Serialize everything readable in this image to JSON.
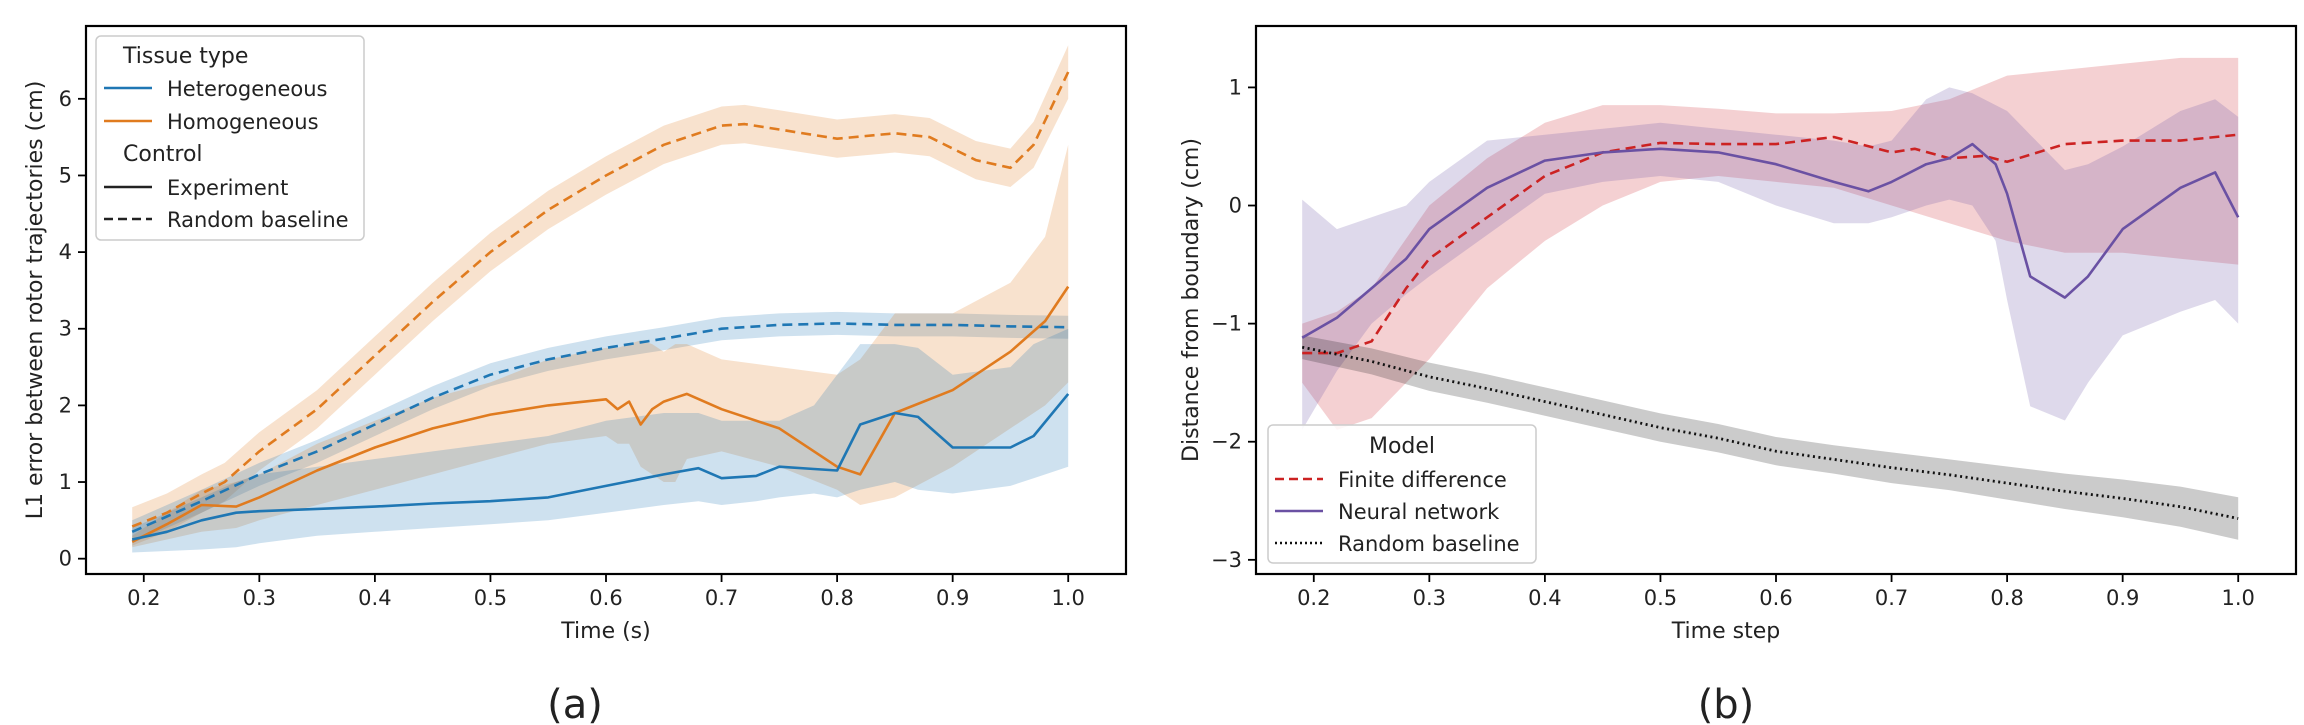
{
  "chart_data": [
    {
      "type": "line",
      "caption": "(a)",
      "xlabel": "Time (s)",
      "ylabel": "L1 error between rotor trajectories (cm)",
      "xlim": [
        0.15,
        1.05
      ],
      "ylim": [
        -0.2,
        6.95
      ],
      "xticks": [
        "0.2",
        "0.3",
        "0.4",
        "0.5",
        "0.6",
        "0.7",
        "0.8",
        "0.9",
        "1.0"
      ],
      "yticks": [
        "0",
        "1",
        "2",
        "3",
        "4",
        "5",
        "6"
      ],
      "grid": false,
      "legend": {
        "placement": "top-left",
        "group1_title": "Tissue type",
        "group1_items": [
          "Heterogeneous",
          "Homogeneous"
        ],
        "group2_title": "Control",
        "group2_items": [
          "Experiment",
          "Random baseline"
        ]
      },
      "series": [
        {
          "color": "#e07b1f",
          "style": "dashed",
          "x": [
            0.19,
            0.22,
            0.25,
            0.27,
            0.3,
            0.35,
            0.4,
            0.45,
            0.5,
            0.55,
            0.6,
            0.65,
            0.7,
            0.72,
            0.75,
            0.8,
            0.85,
            0.88,
            0.92,
            0.95,
            0.97,
            1.0
          ],
          "y": [
            0.42,
            0.6,
            0.85,
            1.0,
            1.4,
            1.95,
            2.65,
            3.35,
            4.0,
            4.55,
            5.0,
            5.4,
            5.65,
            5.67,
            5.6,
            5.48,
            5.55,
            5.5,
            5.2,
            5.1,
            5.4,
            6.35
          ],
          "band": [
            0.25,
            0.25,
            0.25,
            0.25,
            0.25,
            0.25,
            0.25,
            0.25,
            0.25,
            0.25,
            0.25,
            0.25,
            0.25,
            0.25,
            0.25,
            0.25,
            0.25,
            0.25,
            0.25,
            0.25,
            0.3,
            0.35
          ]
        },
        {
          "color": "#1f77b4",
          "style": "dashed",
          "x": [
            0.19,
            0.22,
            0.25,
            0.3,
            0.35,
            0.4,
            0.45,
            0.5,
            0.55,
            0.6,
            0.65,
            0.7,
            0.75,
            0.8,
            0.85,
            0.9,
            0.95,
            1.0
          ],
          "y": [
            0.35,
            0.55,
            0.75,
            1.1,
            1.4,
            1.75,
            2.1,
            2.4,
            2.6,
            2.75,
            2.87,
            3.0,
            3.05,
            3.07,
            3.05,
            3.05,
            3.03,
            3.02
          ],
          "band": [
            0.15,
            0.15,
            0.15,
            0.15,
            0.15,
            0.15,
            0.15,
            0.15,
            0.15,
            0.15,
            0.15,
            0.15,
            0.15,
            0.15,
            0.15,
            0.15,
            0.15,
            0.15
          ]
        },
        {
          "color": "#e07b1f",
          "style": "solid",
          "x": [
            0.19,
            0.22,
            0.25,
            0.28,
            0.3,
            0.35,
            0.4,
            0.45,
            0.5,
            0.55,
            0.6,
            0.61,
            0.62,
            0.63,
            0.64,
            0.65,
            0.66,
            0.67,
            0.7,
            0.75,
            0.8,
            0.82,
            0.85,
            0.9,
            0.95,
            0.98,
            1.0
          ],
          "y": [
            0.22,
            0.45,
            0.7,
            0.68,
            0.8,
            1.15,
            1.45,
            1.7,
            1.88,
            2.0,
            2.08,
            1.95,
            2.05,
            1.75,
            1.95,
            2.05,
            2.1,
            2.15,
            1.95,
            1.7,
            1.2,
            1.1,
            1.9,
            2.2,
            2.7,
            3.1,
            3.55
          ],
          "lo": [
            0.15,
            0.25,
            0.35,
            0.4,
            0.5,
            0.7,
            0.9,
            1.1,
            1.3,
            1.5,
            1.6,
            1.5,
            1.5,
            1.2,
            1.1,
            1.0,
            1.0,
            1.3,
            1.4,
            1.2,
            0.9,
            0.7,
            0.8,
            1.2,
            1.7,
            2.0,
            2.3
          ],
          "hi": [
            0.3,
            0.6,
            0.9,
            1.0,
            1.1,
            1.5,
            1.8,
            2.1,
            2.3,
            2.6,
            2.75,
            2.75,
            2.8,
            2.85,
            2.8,
            2.7,
            2.8,
            2.8,
            2.6,
            2.5,
            2.4,
            2.6,
            3.2,
            3.2,
            3.6,
            4.2,
            5.4
          ]
        },
        {
          "color": "#1f77b4",
          "style": "solid",
          "x": [
            0.19,
            0.22,
            0.25,
            0.28,
            0.3,
            0.35,
            0.4,
            0.45,
            0.5,
            0.55,
            0.6,
            0.65,
            0.68,
            0.7,
            0.73,
            0.75,
            0.78,
            0.8,
            0.82,
            0.85,
            0.87,
            0.9,
            0.95,
            0.97,
            1.0
          ],
          "y": [
            0.25,
            0.35,
            0.5,
            0.6,
            0.62,
            0.65,
            0.68,
            0.72,
            0.75,
            0.8,
            0.95,
            1.1,
            1.18,
            1.05,
            1.08,
            1.2,
            1.17,
            1.15,
            1.75,
            1.9,
            1.85,
            1.45,
            1.45,
            1.6,
            2.15
          ],
          "lo": [
            0.08,
            0.1,
            0.12,
            0.15,
            0.2,
            0.3,
            0.35,
            0.4,
            0.45,
            0.5,
            0.6,
            0.7,
            0.75,
            0.7,
            0.75,
            0.8,
            0.85,
            0.8,
            0.9,
            1.0,
            0.9,
            0.85,
            0.95,
            1.05,
            1.2
          ],
          "hi": [
            0.4,
            0.6,
            0.8,
            1.0,
            1.1,
            1.2,
            1.3,
            1.4,
            1.5,
            1.6,
            1.8,
            1.9,
            1.9,
            1.8,
            1.8,
            1.8,
            2.0,
            2.4,
            2.8,
            2.8,
            2.75,
            2.4,
            2.5,
            2.8,
            3.0
          ]
        }
      ]
    },
    {
      "type": "line",
      "caption": "(b)",
      "xlabel": "Time step",
      "ylabel": "Distance from boundary (cm)",
      "xlim": [
        0.15,
        1.05
      ],
      "ylim": [
        -3.12,
        1.52
      ],
      "xticks": [
        "0.2",
        "0.3",
        "0.4",
        "0.5",
        "0.6",
        "0.7",
        "0.8",
        "0.9",
        "1.0"
      ],
      "yticks": [
        "1",
        "0",
        "−1",
        "−2",
        "−3"
      ],
      "grid": false,
      "legend": {
        "placement": "bottom-left",
        "title": "Model",
        "items": [
          "Finite difference",
          "Neural network",
          "Random baseline"
        ]
      },
      "series": [
        {
          "color": "#e7969c",
          "style": "band-only",
          "x": [
            0.19,
            0.22,
            0.25,
            0.3,
            0.35,
            0.4,
            0.45,
            0.5,
            0.55,
            0.6,
            0.65,
            0.7,
            0.75,
            0.8,
            0.85,
            0.9,
            0.95,
            1.0
          ],
          "lo": [
            -1.5,
            -1.9,
            -1.8,
            -1.3,
            -0.7,
            -0.3,
            0.0,
            0.2,
            0.25,
            0.2,
            0.15,
            0.0,
            -0.15,
            -0.3,
            -0.4,
            -0.4,
            -0.45,
            -0.5
          ],
          "hi": [
            -1.0,
            -0.9,
            -0.7,
            0.0,
            0.4,
            0.7,
            0.85,
            0.85,
            0.82,
            0.78,
            0.78,
            0.8,
            0.9,
            1.1,
            1.15,
            1.2,
            1.25,
            1.25
          ]
        },
        {
          "color": "#cc2222",
          "style": "dashed",
          "x": [
            0.19,
            0.22,
            0.25,
            0.28,
            0.3,
            0.35,
            0.4,
            0.45,
            0.5,
            0.55,
            0.6,
            0.65,
            0.7,
            0.72,
            0.75,
            0.78,
            0.8,
            0.85,
            0.9,
            0.95,
            1.0
          ],
          "y": [
            -1.25,
            -1.25,
            -1.15,
            -0.7,
            -0.45,
            -0.1,
            0.25,
            0.45,
            0.53,
            0.52,
            0.52,
            0.58,
            0.45,
            0.48,
            0.4,
            0.42,
            0.37,
            0.52,
            0.55,
            0.55,
            0.6
          ]
        },
        {
          "color": "#6a51a3",
          "style": "solid",
          "x": [
            0.19,
            0.22,
            0.25,
            0.28,
            0.3,
            0.35,
            0.4,
            0.45,
            0.5,
            0.55,
            0.6,
            0.65,
            0.68,
            0.7,
            0.73,
            0.75,
            0.77,
            0.79,
            0.8,
            0.82,
            0.85,
            0.87,
            0.9,
            0.95,
            0.98,
            1.0
          ],
          "y": [
            -1.12,
            -0.95,
            -0.7,
            -0.45,
            -0.2,
            0.15,
            0.38,
            0.45,
            0.48,
            0.45,
            0.35,
            0.2,
            0.12,
            0.2,
            0.35,
            0.4,
            0.52,
            0.35,
            0.1,
            -0.6,
            -0.78,
            -0.6,
            -0.2,
            0.15,
            0.28,
            -0.1
          ],
          "lo": [
            -1.9,
            -1.4,
            -1.0,
            -0.75,
            -0.6,
            -0.25,
            0.1,
            0.2,
            0.25,
            0.2,
            0.0,
            -0.15,
            -0.15,
            -0.1,
            0.0,
            0.05,
            0.0,
            -0.3,
            -0.8,
            -1.7,
            -1.82,
            -1.5,
            -1.1,
            -0.9,
            -0.8,
            -1.0
          ],
          "hi": [
            0.05,
            -0.2,
            -0.1,
            0.0,
            0.2,
            0.55,
            0.6,
            0.65,
            0.7,
            0.65,
            0.6,
            0.55,
            0.5,
            0.55,
            0.9,
            1.0,
            0.95,
            0.85,
            0.8,
            0.6,
            0.3,
            0.35,
            0.5,
            0.8,
            0.9,
            0.75
          ]
        },
        {
          "color": "#111111",
          "style": "dotted",
          "x": [
            0.19,
            0.25,
            0.3,
            0.35,
            0.4,
            0.45,
            0.5,
            0.55,
            0.6,
            0.65,
            0.7,
            0.75,
            0.8,
            0.85,
            0.9,
            0.95,
            1.0
          ],
          "y": [
            -1.2,
            -1.32,
            -1.45,
            -1.55,
            -1.66,
            -1.77,
            -1.88,
            -1.97,
            -2.08,
            -2.15,
            -2.22,
            -2.28,
            -2.35,
            -2.42,
            -2.48,
            -2.55,
            -2.65
          ],
          "band": [
            0.1,
            0.11,
            0.12,
            0.12,
            0.12,
            0.12,
            0.12,
            0.12,
            0.12,
            0.12,
            0.13,
            0.13,
            0.14,
            0.15,
            0.16,
            0.17,
            0.18
          ]
        }
      ]
    }
  ]
}
